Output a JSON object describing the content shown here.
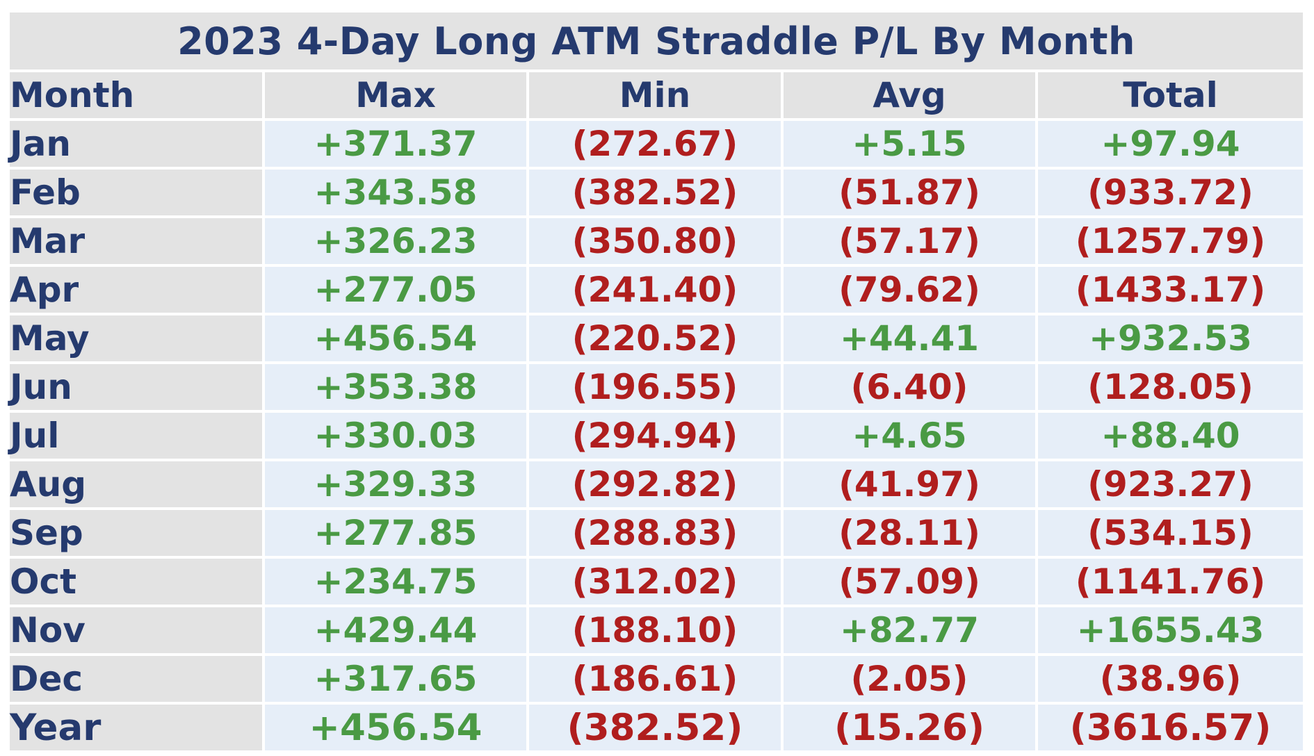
{
  "title": "2023 4-Day Long ATM Straddle P/L By Month",
  "colors": {
    "header_text": "#253a6e",
    "header_bg": "#e3e3e3",
    "cell_bg": "#e6eef8",
    "positive": "#4a9a44",
    "negative": "#b01e1e"
  },
  "chart_data": {
    "type": "table",
    "title": "2023 4-Day Long ATM Straddle P/L By Month",
    "columns": [
      "Month",
      "Max",
      "Min",
      "Avg",
      "Total"
    ],
    "rows": [
      {
        "month": "Jan",
        "max": "+371.37",
        "min": "(272.67)",
        "avg": "+5.15",
        "total": "+97.94"
      },
      {
        "month": "Feb",
        "max": "+343.58",
        "min": "(382.52)",
        "avg": "(51.87)",
        "total": "(933.72)"
      },
      {
        "month": "Mar",
        "max": "+326.23",
        "min": "(350.80)",
        "avg": "(57.17)",
        "total": "(1257.79)"
      },
      {
        "month": "Apr",
        "max": "+277.05",
        "min": "(241.40)",
        "avg": "(79.62)",
        "total": "(1433.17)"
      },
      {
        "month": "May",
        "max": "+456.54",
        "min": "(220.52)",
        "avg": "+44.41",
        "total": "+932.53"
      },
      {
        "month": "Jun",
        "max": "+353.38",
        "min": "(196.55)",
        "avg": "(6.40)",
        "total": "(128.05)"
      },
      {
        "month": "Jul",
        "max": "+330.03",
        "min": "(294.94)",
        "avg": "+4.65",
        "total": "+88.40"
      },
      {
        "month": "Aug",
        "max": "+329.33",
        "min": "(292.82)",
        "avg": "(41.97)",
        "total": "(923.27)"
      },
      {
        "month": "Sep",
        "max": "+277.85",
        "min": "(288.83)",
        "avg": "(28.11)",
        "total": "(534.15)"
      },
      {
        "month": "Oct",
        "max": "+234.75",
        "min": "(312.02)",
        "avg": "(57.09)",
        "total": "(1141.76)"
      },
      {
        "month": "Nov",
        "max": "+429.44",
        "min": "(188.10)",
        "avg": "+82.77",
        "total": "+1655.43"
      },
      {
        "month": "Dec",
        "max": "+317.65",
        "min": "(186.61)",
        "avg": "(2.05)",
        "total": "(38.96)"
      },
      {
        "month": "Year",
        "max": "+456.54",
        "min": "(382.52)",
        "avg": "(15.26)",
        "total": "(3616.57)"
      }
    ],
    "values": {
      "max": [
        371.37,
        343.58,
        326.23,
        277.05,
        456.54,
        353.38,
        330.03,
        329.33,
        277.85,
        234.75,
        429.44,
        317.65,
        456.54
      ],
      "min": [
        -272.67,
        -382.52,
        -350.8,
        -241.4,
        -220.52,
        -196.55,
        -294.94,
        -292.82,
        -288.83,
        -312.02,
        -188.1,
        -186.61,
        -382.52
      ],
      "avg": [
        5.15,
        -51.87,
        -57.17,
        -79.62,
        44.41,
        -6.4,
        4.65,
        -41.97,
        -28.11,
        -57.09,
        82.77,
        -2.05,
        -15.26
      ],
      "total": [
        97.94,
        -933.72,
        -1257.79,
        -1433.17,
        932.53,
        -128.05,
        88.4,
        -923.27,
        -534.15,
        -1141.76,
        1655.43,
        -38.96,
        -3616.57
      ]
    }
  }
}
